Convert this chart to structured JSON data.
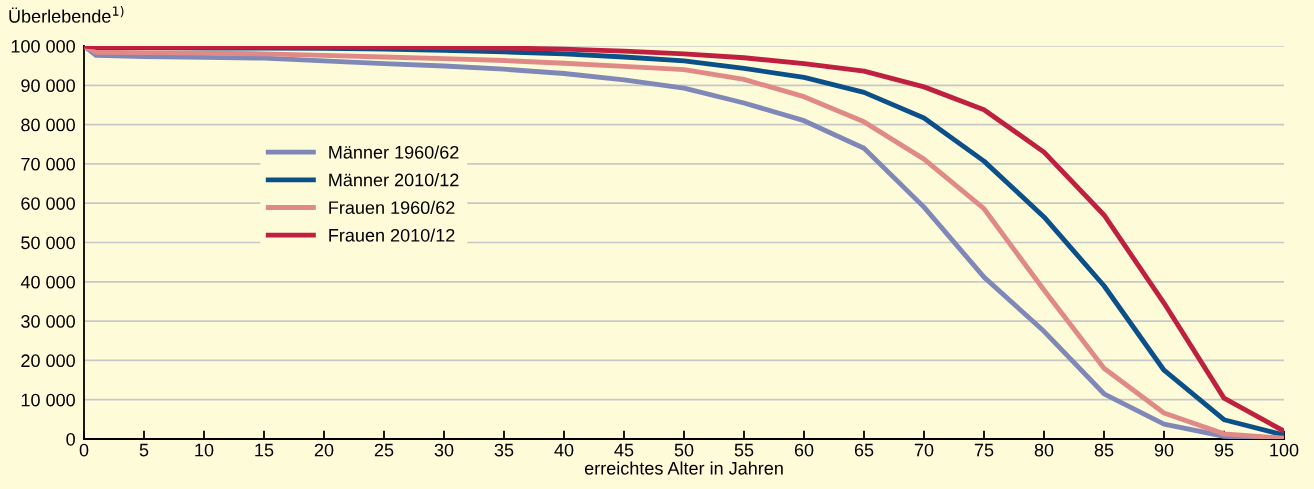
{
  "chart_data": {
    "type": "line",
    "ylabel": "Überlebende$^{1)}$",
    "xlabel": "erreichtes Alter in Jahren",
    "x": [
      0,
      1,
      5,
      10,
      15,
      20,
      25,
      30,
      35,
      40,
      45,
      50,
      55,
      60,
      65,
      70,
      75,
      80,
      85,
      90,
      95,
      100
    ],
    "series": [
      {
        "name": "Männer 1960/62",
        "color": "#8088b8",
        "values": [
          100000,
          97600,
          97300,
          97100,
          96900,
          96200,
          95500,
          94900,
          94100,
          93000,
          91400,
          89300,
          85500,
          81000,
          74000,
          59000,
          41200,
          27400,
          11500,
          3800,
          700,
          100
        ]
      },
      {
        "name": "Männer 2010/12",
        "color": "#0b5088",
        "values": [
          100000,
          99600,
          99600,
          99500,
          99500,
          99400,
          99200,
          98900,
          98500,
          98000,
          97200,
          96200,
          94300,
          92000,
          88200,
          81700,
          70700,
          56500,
          39000,
          17500,
          4900,
          1000
        ]
      },
      {
        "name": "Frauen 1960/62",
        "color": "#e08a88",
        "values": [
          100000,
          98400,
          98300,
          98200,
          98000,
          97600,
          97200,
          96800,
          96300,
          95600,
          94800,
          94000,
          91500,
          87100,
          80700,
          71200,
          58600,
          37900,
          18000,
          6600,
          1300,
          200
        ]
      },
      {
        "name": "Frauen 2010/12",
        "color": "#c0203f",
        "values": [
          100000,
          99700,
          99700,
          99700,
          99700,
          99700,
          99700,
          99600,
          99500,
          99200,
          98700,
          98000,
          97000,
          95500,
          93600,
          89600,
          83800,
          73000,
          57000,
          34600,
          10400,
          2000
        ]
      }
    ],
    "xlim": [
      0,
      100
    ],
    "xticks": [
      0,
      5,
      10,
      15,
      20,
      25,
      30,
      35,
      40,
      45,
      50,
      55,
      60,
      65,
      70,
      75,
      80,
      85,
      90,
      95,
      100
    ],
    "ylim": [
      0,
      100000
    ],
    "yticks": [
      0,
      {
        "value": 10000,
        "label": "10 000"
      },
      {
        "value": 20000,
        "label": "20 000"
      },
      {
        "value": 30000,
        "label": "30 000"
      },
      {
        "value": 40000,
        "label": "40 000"
      },
      {
        "value": 50000,
        "label": "50 000"
      },
      {
        "value": 60000,
        "label": "60 000"
      },
      {
        "value": 70000,
        "label": "70 000"
      },
      {
        "value": 80000,
        "label": "80 000"
      },
      {
        "value": 90000,
        "label": "90 000"
      },
      {
        "value": 100000,
        "label": "100 000"
      }
    ],
    "grid": "y",
    "legend": "left",
    "marker": "none",
    "line_style": "solid"
  }
}
